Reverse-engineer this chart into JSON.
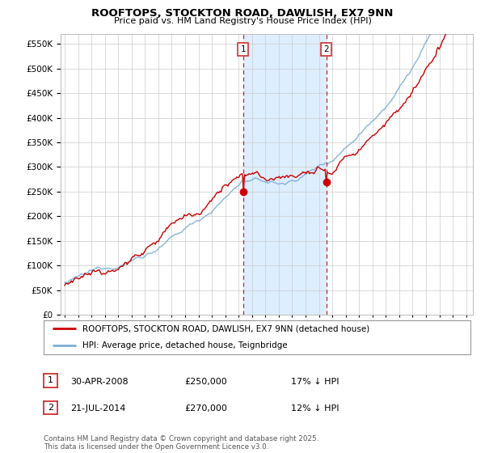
{
  "title": "ROOFTOPS, STOCKTON ROAD, DAWLISH, EX7 9NN",
  "subtitle": "Price paid vs. HM Land Registry's House Price Index (HPI)",
  "ytick_values": [
    0,
    50000,
    100000,
    150000,
    200000,
    250000,
    300000,
    350000,
    400000,
    450000,
    500000,
    550000
  ],
  "ylim": [
    0,
    570000
  ],
  "xlim_start": 1994.7,
  "xlim_end": 2025.5,
  "marker1_date": 2008.33,
  "marker1_price": 250000,
  "marker2_date": 2014.55,
  "marker2_price": 270000,
  "shade_start": 2008.33,
  "shade_end": 2014.55,
  "legend_line1": "ROOFTOPS, STOCKTON ROAD, DAWLISH, EX7 9NN (detached house)",
  "legend_line2": "HPI: Average price, detached house, Teignbridge",
  "table_row1_num": "1",
  "table_row1_date": "30-APR-2008",
  "table_row1_price": "£250,000",
  "table_row1_hpi": "17% ↓ HPI",
  "table_row2_num": "2",
  "table_row2_date": "21-JUL-2014",
  "table_row2_price": "£270,000",
  "table_row2_hpi": "12% ↓ HPI",
  "footnote": "Contains HM Land Registry data © Crown copyright and database right 2025.\nThis data is licensed under the Open Government Licence v3.0.",
  "color_red": "#cc0000",
  "color_blue": "#7aaed6",
  "color_shade": "#ddeeff",
  "background": "#ffffff",
  "grid_color": "#cccccc"
}
